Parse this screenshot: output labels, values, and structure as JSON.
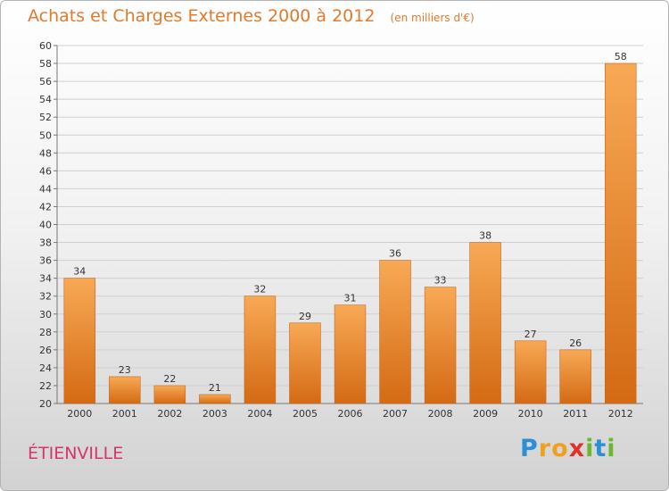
{
  "chart_data": {
    "type": "bar",
    "title": "Achats et Charges Externes 2000 à 2012",
    "unit": "(en milliers d'€)",
    "categories": [
      "2000",
      "2001",
      "2002",
      "2003",
      "2004",
      "2005",
      "2006",
      "2007",
      "2008",
      "2009",
      "2010",
      "2011",
      "2012"
    ],
    "values": [
      34,
      23,
      22,
      21,
      32,
      29,
      31,
      36,
      33,
      38,
      27,
      26,
      58
    ],
    "ylim": [
      20,
      60
    ],
    "ytick_step": 2,
    "grid": true,
    "bar_color": "#f0882e",
    "title_color": "#e07a2c"
  },
  "commune": "ÉTIENVILLE",
  "brand": {
    "letters": [
      "P",
      "r",
      "o",
      "x",
      "i",
      "t",
      "i"
    ],
    "colors": [
      "#2b8fd6",
      "#f0a020",
      "#f0a020",
      "#e0302a",
      "#6ab82e",
      "#2b8fd6",
      "#6ab82e"
    ]
  }
}
